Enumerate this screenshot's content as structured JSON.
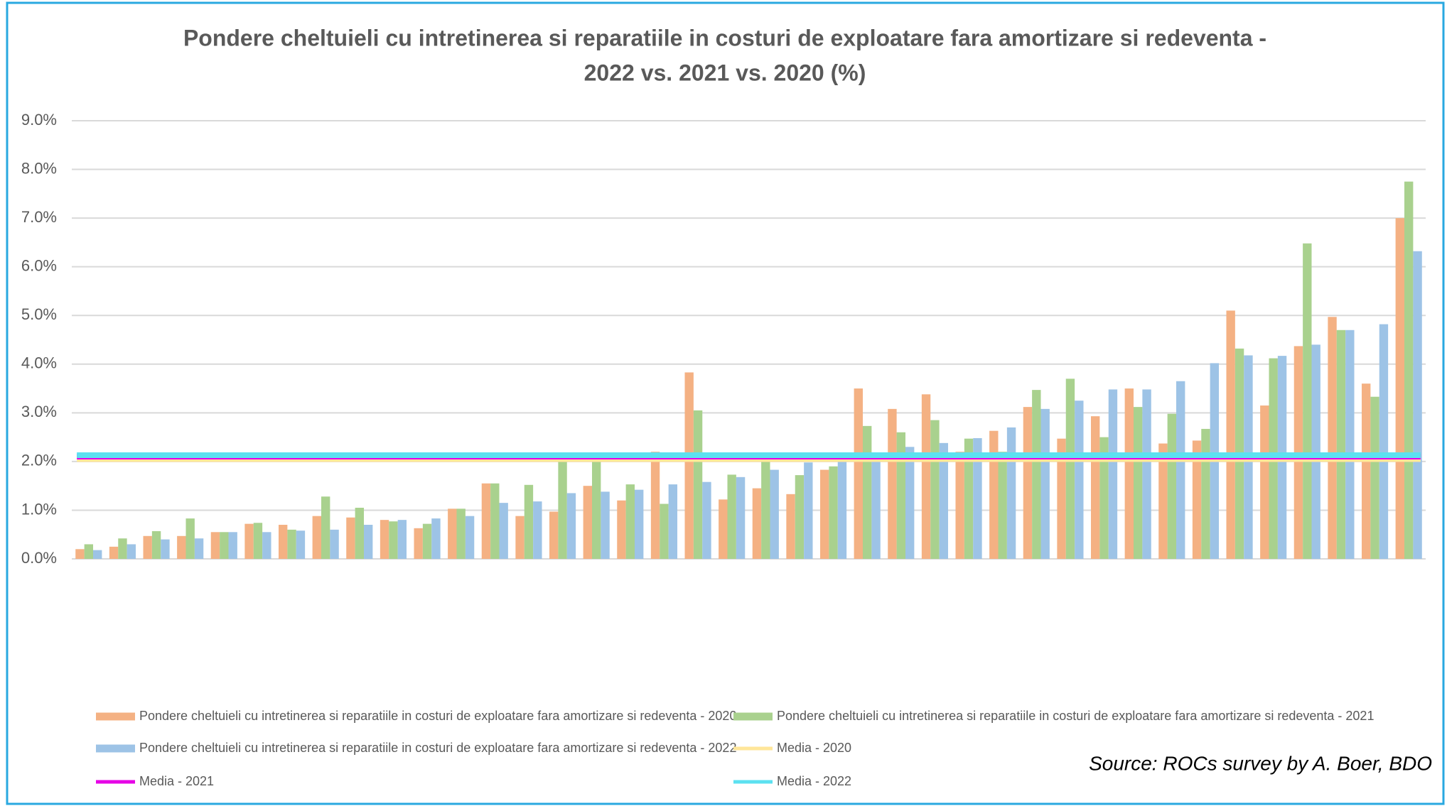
{
  "chart_data": {
    "type": "bar",
    "title": [
      "Pondere cheltuieli cu intretinerea si reparatiile in costuri de exploatare fara amortizare si redeventa -",
      "2022 vs. 2021 vs. 2020 (%)"
    ],
    "categories": [
      null,
      null,
      null,
      null,
      null,
      null,
      null,
      null,
      null,
      null,
      null,
      null,
      null,
      null,
      null,
      null,
      null,
      null,
      null,
      null,
      null,
      null,
      null,
      null,
      null,
      null,
      null,
      null,
      null,
      null,
      null,
      null,
      null,
      null,
      null,
      null,
      null,
      null,
      null,
      null
    ],
    "series": [
      {
        "name": "Pondere cheltuieli cu intretinerea si reparatiile in costuri de exploatare fara amortizare si redeventa - 2020",
        "color": "#f4b183",
        "values": [
          0.2,
          0.25,
          0.47,
          0.47,
          0.55,
          0.72,
          0.7,
          0.88,
          0.85,
          0.8,
          0.63,
          1.03,
          1.55,
          0.88,
          0.97,
          1.5,
          1.2,
          2.2,
          3.83,
          1.22,
          1.45,
          1.33,
          1.83,
          3.5,
          3.08,
          3.38,
          2.2,
          2.63,
          3.12,
          2.47,
          2.93,
          3.5,
          2.37,
          2.43,
          5.1,
          3.15,
          4.37,
          4.97,
          3.6,
          7.0
        ]
      },
      {
        "name": "Pondere cheltuieli cu intretinerea si reparatiile in costuri de exploatare fara amortizare si redeventa - 2021",
        "color": "#a9d18e",
        "values": [
          0.3,
          0.42,
          0.57,
          0.83,
          0.55,
          0.74,
          0.6,
          1.28,
          1.05,
          0.77,
          0.72,
          1.03,
          1.55,
          1.52,
          2.0,
          2.0,
          1.53,
          1.13,
          3.05,
          1.73,
          2.0,
          1.72,
          1.9,
          2.73,
          2.6,
          2.85,
          2.47,
          2.2,
          3.47,
          3.7,
          2.5,
          3.12,
          2.98,
          2.67,
          4.32,
          4.12,
          6.48,
          4.7,
          3.33,
          7.75
        ]
      },
      {
        "name": "Pondere cheltuieli cu intretinerea si reparatiile in costuri de exploatare fara amortizare si redeventa - 2022",
        "color": "#9dc3e6",
        "values": [
          0.18,
          0.3,
          0.4,
          0.42,
          0.55,
          0.55,
          0.58,
          0.6,
          0.7,
          0.8,
          0.83,
          0.88,
          1.15,
          1.18,
          1.35,
          1.38,
          1.42,
          1.53,
          1.58,
          1.68,
          1.83,
          1.98,
          2.0,
          2.05,
          2.3,
          2.38,
          2.48,
          2.7,
          3.08,
          3.25,
          3.48,
          3.48,
          3.65,
          4.02,
          4.18,
          4.17,
          4.4,
          4.7,
          4.82,
          6.32
        ]
      }
    ],
    "lines": [
      {
        "name": "Media - 2020",
        "color": "#ffe699",
        "value": 2.05
      },
      {
        "name": "Media - 2021",
        "color": "#e600e6",
        "value": 2.1
      },
      {
        "name": "Media - 2022",
        "color": "#5ce1f0",
        "value": 2.13
      }
    ],
    "ylim": [
      0,
      9
    ],
    "yticks": [
      {
        "value": 0,
        "label": "0.0%"
      },
      {
        "value": 1,
        "label": "1.0%"
      },
      {
        "value": 2,
        "label": "2.0%"
      },
      {
        "value": 3,
        "label": "3.0%"
      },
      {
        "value": 4,
        "label": "4.0%"
      },
      {
        "value": 5,
        "label": "5.0%"
      },
      {
        "value": 6,
        "label": "6.0%"
      },
      {
        "value": 7,
        "label": "7.0%"
      },
      {
        "value": 8,
        "label": "8.0%"
      },
      {
        "value": 9,
        "label": "9.0%"
      }
    ],
    "grid": true,
    "source": "Source: ROCs survey by A. Boer, BDO"
  }
}
